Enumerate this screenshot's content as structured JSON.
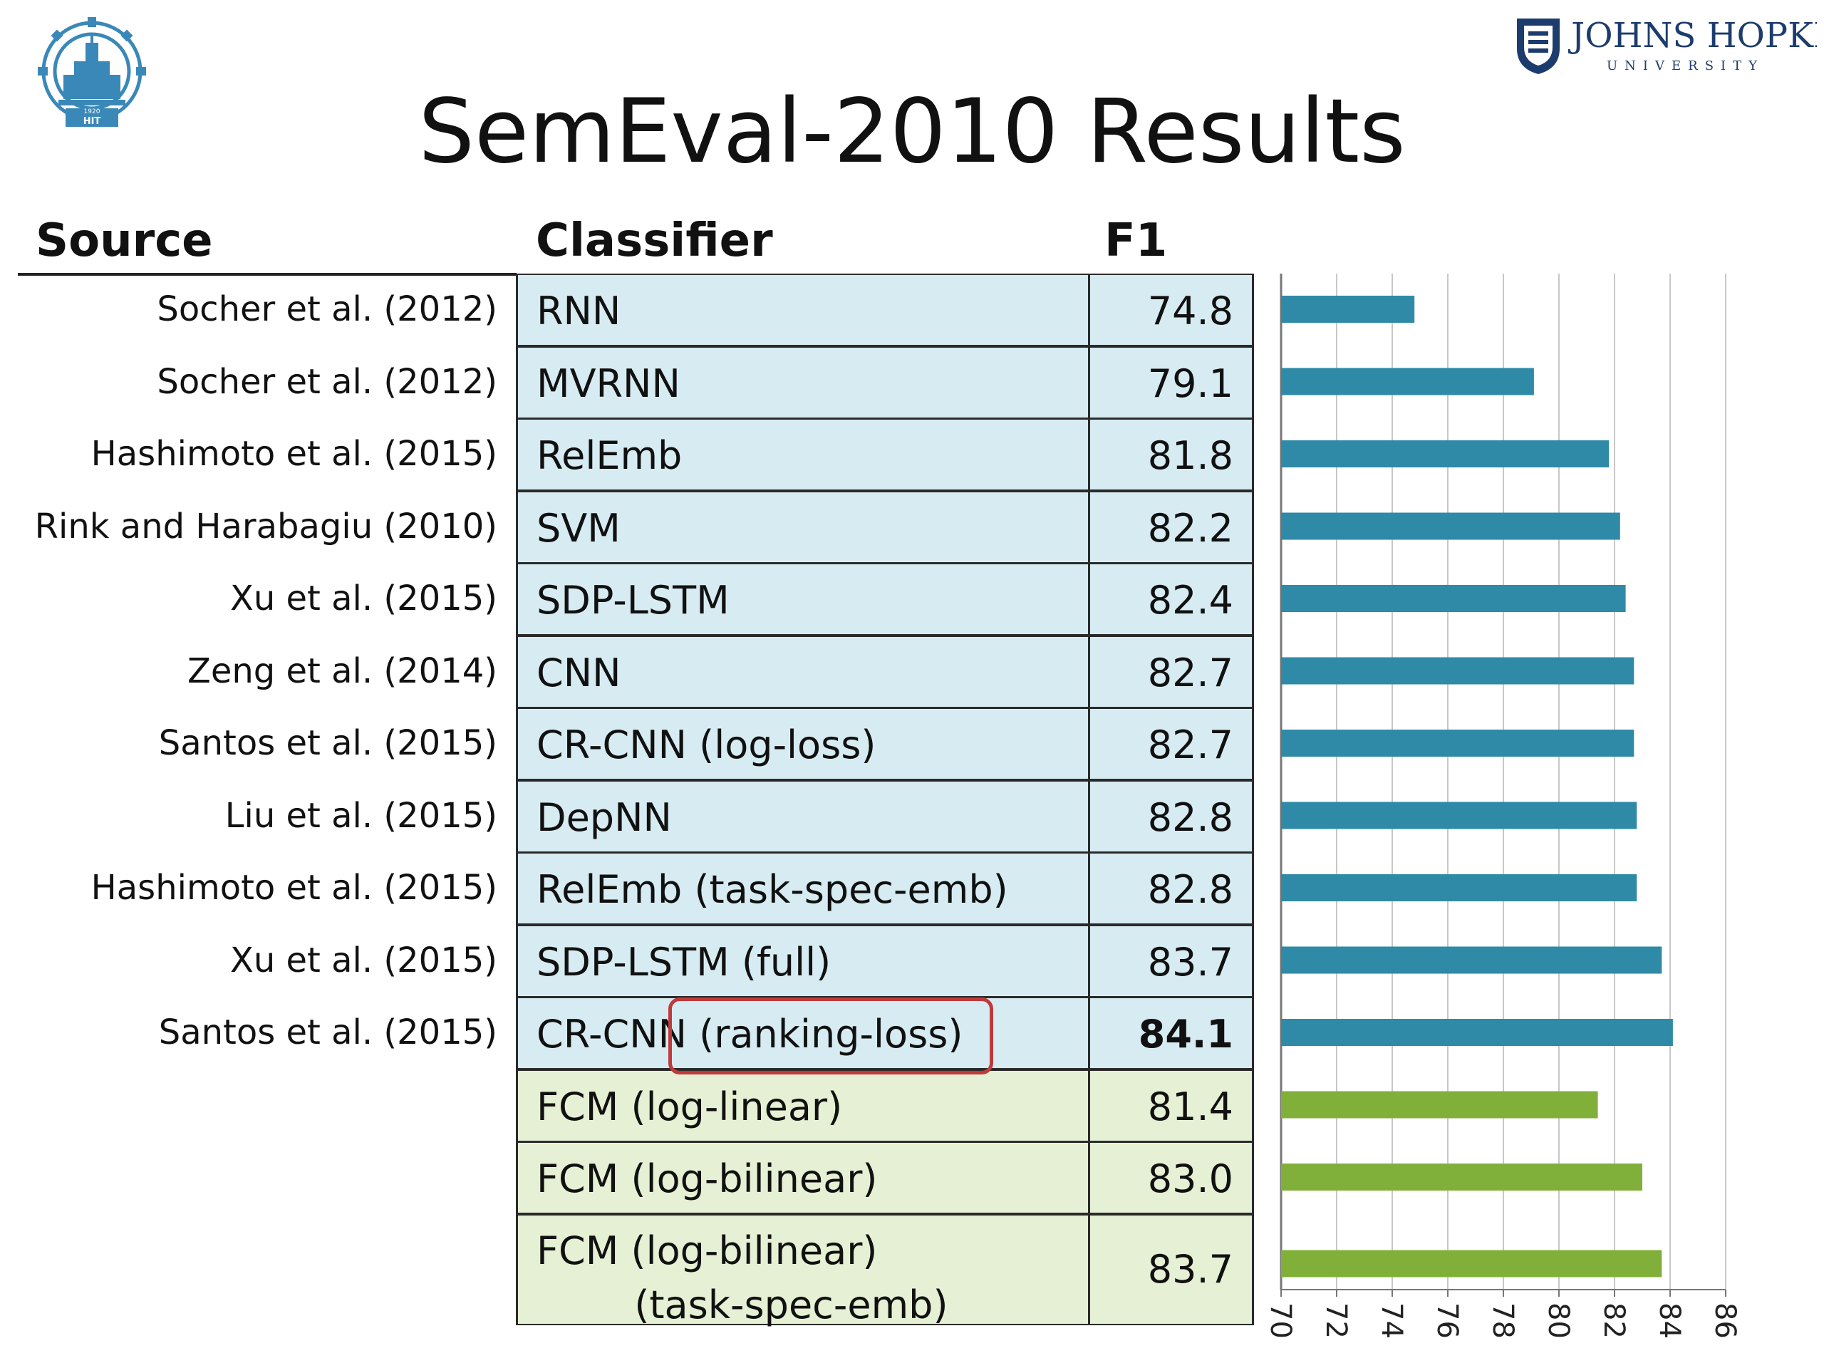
{
  "title": "SemEval-2010 Results",
  "logos": {
    "left_text": "HIT",
    "left_year": "1920",
    "right_line1": "JOHNS HOPKINS",
    "right_line2": "UNIVERSITY"
  },
  "headers": {
    "source": "Source",
    "classifier": "Classifier",
    "f1": "F1"
  },
  "rows": [
    {
      "source": "Socher et al. (2012)",
      "classifier": "RNN",
      "f1": "74.8",
      "group": "blue"
    },
    {
      "source": "Socher et al. (2012)",
      "classifier": "MVRNN",
      "f1": "79.1",
      "group": "blue"
    },
    {
      "source": "Hashimoto et al. (2015)",
      "classifier": "RelEmb",
      "f1": "81.8",
      "group": "blue"
    },
    {
      "source": "Rink and Harabagiu (2010)",
      "classifier": "SVM",
      "f1": "82.2",
      "group": "blue"
    },
    {
      "source": "Xu et al. (2015)",
      "classifier": "SDP-LSTM",
      "f1": "82.4",
      "group": "blue"
    },
    {
      "source": "Zeng et al. (2014)",
      "classifier": "CNN",
      "f1": "82.7",
      "group": "blue"
    },
    {
      "source": "Santos et al. (2015)",
      "classifier": "CR-CNN (log-loss)",
      "f1": "82.7",
      "group": "blue"
    },
    {
      "source": "Liu et al. (2015)",
      "classifier": "DepNN",
      "f1": "82.8",
      "group": "blue"
    },
    {
      "source": "Hashimoto et al. (2015)",
      "classifier": "RelEmb (task-spec-emb)",
      "f1": "82.8",
      "group": "blue"
    },
    {
      "source": "Xu et al. (2015)",
      "classifier": "SDP-LSTM (full)",
      "f1": "83.7",
      "group": "blue"
    },
    {
      "source": "Santos et al. (2015)",
      "classifier": "CR-CNN (ranking-loss)",
      "f1": "84.1",
      "group": "blue",
      "bold": true
    },
    {
      "source": "",
      "classifier": "FCM (log-linear)",
      "f1": "81.4",
      "group": "green"
    },
    {
      "source": "",
      "classifier": "FCM (log-bilinear)",
      "f1": "83.0",
      "group": "green"
    },
    {
      "source": "",
      "classifier": "FCM (log-bilinear)\n        (task-spec-emb)",
      "f1": "83.7",
      "group": "green"
    }
  ],
  "colors": {
    "blue_row": "#d7ecf2",
    "green_row": "#e6f0d4",
    "blue_bar": "#2e8aa6",
    "green_bar": "#80b03a",
    "highlight": "#c0393b"
  },
  "chart_data": {
    "type": "bar",
    "orientation": "horizontal",
    "categories": [
      "RNN",
      "MVRNN",
      "RelEmb",
      "SVM",
      "SDP-LSTM",
      "CNN",
      "CR-CNN (log-loss)",
      "DepNN",
      "RelEmb (task-spec-emb)",
      "SDP-LSTM (full)",
      "CR-CNN (ranking-loss)",
      "FCM (log-linear)",
      "FCM (log-bilinear)",
      "FCM (log-bilinear) (task-spec-emb)"
    ],
    "values": [
      74.8,
      79.1,
      81.8,
      82.2,
      82.4,
      82.7,
      82.7,
      82.8,
      82.8,
      83.7,
      84.1,
      81.4,
      83.0,
      83.7
    ],
    "bar_groups": [
      "blue",
      "blue",
      "blue",
      "blue",
      "blue",
      "blue",
      "blue",
      "blue",
      "blue",
      "blue",
      "blue",
      "green",
      "green",
      "green"
    ],
    "xlim": [
      70,
      86
    ],
    "xticks": [
      70,
      72,
      74,
      76,
      78,
      80,
      82,
      84,
      86
    ],
    "tick_labels": [
      "70",
      "72",
      "74",
      "76",
      "78",
      "80",
      "82",
      "84",
      "86"
    ],
    "tick_label_rotation": "90",
    "grid": "vertical"
  }
}
